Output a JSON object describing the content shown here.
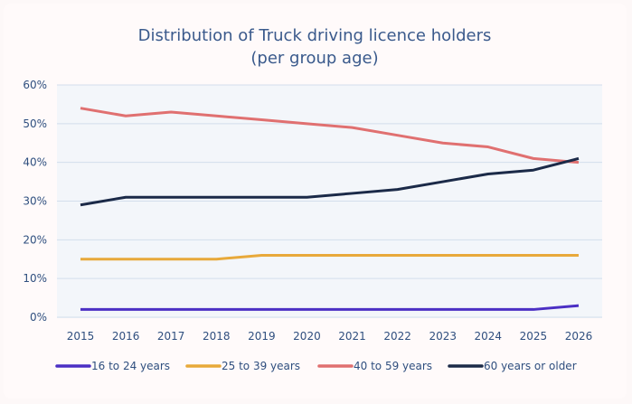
{
  "chart_data": {
    "type": "line",
    "title": "Distribution of Truck driving licence holders",
    "subtitle": "(per group age)",
    "categories": [
      "2015",
      "2016",
      "2017",
      "2018",
      "2019",
      "2020",
      "2021",
      "2022",
      "2023",
      "2024",
      "2025",
      "2026"
    ],
    "ylim": [
      0,
      60
    ],
    "yticks": [
      "0%",
      "10%",
      "20%",
      "30%",
      "40%",
      "50%",
      "60%"
    ],
    "grid": true,
    "legend_position": "bottom",
    "series": [
      {
        "name": "16 to 24 years",
        "color": "#4b2fc4",
        "values": [
          2,
          2,
          2,
          2,
          2,
          2,
          2,
          2,
          2,
          2,
          2,
          3
        ]
      },
      {
        "name": "25 to 39 years",
        "color": "#e8a93a",
        "values": [
          15,
          15,
          15,
          15,
          16,
          16,
          16,
          16,
          16,
          16,
          16,
          16
        ]
      },
      {
        "name": "40 to 59 years",
        "color": "#e07070",
        "values": [
          54,
          52,
          53,
          52,
          51,
          50,
          49,
          47,
          45,
          44,
          41,
          40
        ]
      },
      {
        "name": "60 years or older",
        "color": "#1b2a48",
        "values": [
          29,
          31,
          31,
          31,
          31,
          31,
          32,
          33,
          35,
          37,
          38,
          41
        ]
      }
    ]
  }
}
